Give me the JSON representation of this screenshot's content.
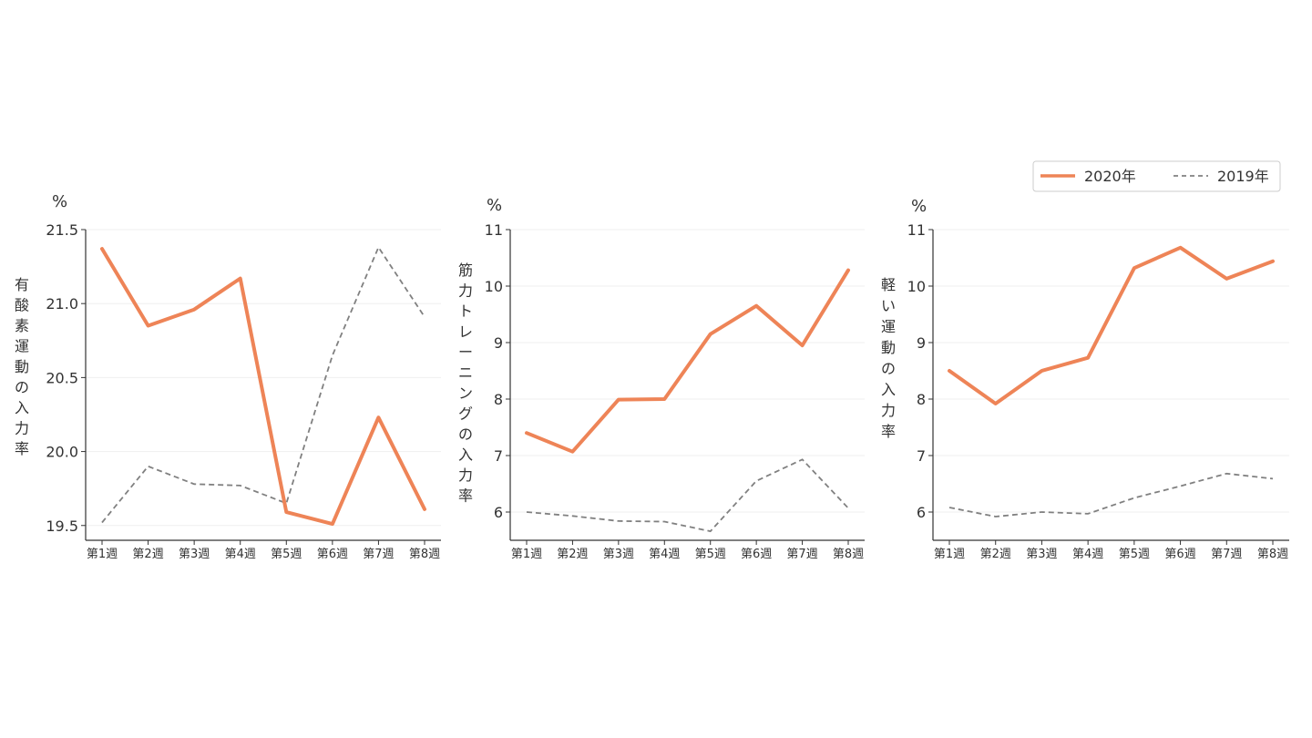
{
  "legend": {
    "placement": "top-right",
    "items": [
      {
        "label": "2020年",
        "color": "#EE8457",
        "style": "solid"
      },
      {
        "label": "2019年",
        "color": "#808080",
        "style": "dashed"
      }
    ]
  },
  "chart_data": [
    {
      "type": "line",
      "unit": "%",
      "ylabel": "有酸素運動の入力率",
      "categories": [
        "第1週",
        "第2週",
        "第3週",
        "第4週",
        "第5週",
        "第6週",
        "第7週",
        "第8週"
      ],
      "ylim": [
        19.4,
        21.5
      ],
      "yticks": [
        19.5,
        20.0,
        20.5,
        21.0,
        21.5
      ],
      "ytick_labels": [
        "19.5",
        "20.0",
        "20.5",
        "21.0",
        "21.5"
      ],
      "grid": "horizontal",
      "series": [
        {
          "name": "2020年",
          "values": [
            21.37,
            20.85,
            20.96,
            21.17,
            19.59,
            19.51,
            20.23,
            19.61
          ]
        },
        {
          "name": "2019年",
          "values": [
            19.52,
            19.9,
            19.78,
            19.77,
            19.65,
            20.65,
            21.38,
            20.91
          ]
        }
      ]
    },
    {
      "type": "line",
      "unit": "%",
      "ylabel": "筋力トレーニングの入力率",
      "categories": [
        "第1週",
        "第2週",
        "第3週",
        "第4週",
        "第5週",
        "第6週",
        "第7週",
        "第8週"
      ],
      "ylim": [
        5.5,
        11
      ],
      "yticks": [
        6,
        7,
        8,
        9,
        10,
        11
      ],
      "ytick_labels": [
        "6",
        "7",
        "8",
        "9",
        "10",
        "11"
      ],
      "grid": "horizontal",
      "series": [
        {
          "name": "2020年",
          "values": [
            7.4,
            7.07,
            7.99,
            8.0,
            9.15,
            9.65,
            8.95,
            10.28
          ]
        },
        {
          "name": "2019年",
          "values": [
            6.0,
            5.93,
            5.84,
            5.83,
            5.66,
            6.55,
            6.93,
            6.07
          ]
        }
      ]
    },
    {
      "type": "line",
      "unit": "%",
      "ylabel": "軽い運動の入力率",
      "categories": [
        "第1週",
        "第2週",
        "第3週",
        "第4週",
        "第5週",
        "第6週",
        "第7週",
        "第8週"
      ],
      "ylim": [
        5.5,
        11
      ],
      "yticks": [
        6,
        7,
        8,
        9,
        10,
        11
      ],
      "ytick_labels": [
        "6",
        "7",
        "8",
        "9",
        "10",
        "11"
      ],
      "grid": "horizontal",
      "series": [
        {
          "name": "2020年",
          "values": [
            8.5,
            7.92,
            8.5,
            8.73,
            10.32,
            10.68,
            10.13,
            10.44
          ]
        },
        {
          "name": "2019年",
          "values": [
            6.08,
            5.92,
            6.0,
            5.97,
            6.25,
            6.46,
            6.68,
            6.59
          ]
        }
      ]
    }
  ]
}
